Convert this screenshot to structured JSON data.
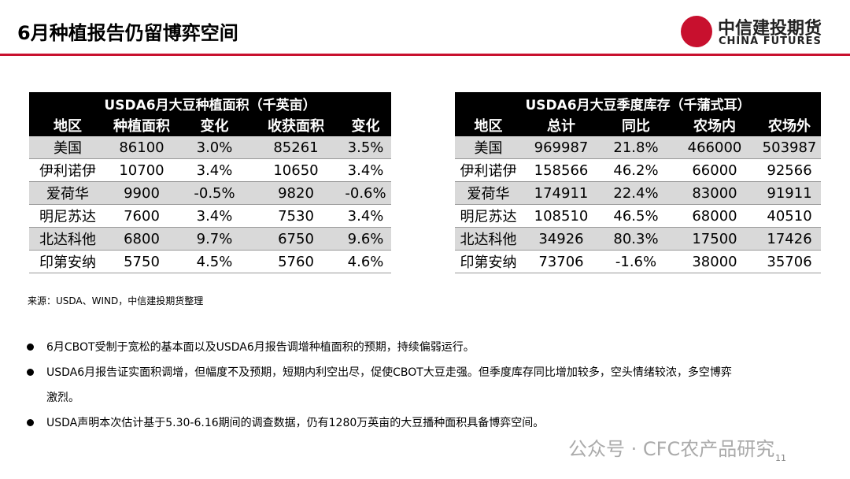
{
  "header": {
    "title": "6月种植报告仍留博弈空间",
    "logo_cn": "中信建投期货",
    "logo_en": "CHINA FUTURES"
  },
  "tables": [
    {
      "title": "USDA6月大豆种植面积（千英亩）",
      "header": [
        "地区",
        "种植面积",
        "变化",
        "收获面积",
        "变化"
      ],
      "rows": [
        [
          "美国",
          "86100",
          "3.0%",
          "85261",
          "3.5%"
        ],
        [
          "伊利诺伊",
          "10700",
          "3.4%",
          "10650",
          "3.4%"
        ],
        [
          "爱荷华",
          "9900",
          "-0.5%",
          "9820",
          "-0.6%"
        ],
        [
          "明尼苏达",
          "7600",
          "3.4%",
          "7530",
          "3.4%"
        ],
        [
          "北达科他",
          "6800",
          "9.7%",
          "6750",
          "9.6%"
        ],
        [
          "印第安纳",
          "5750",
          "4.5%",
          "5760",
          "4.6%"
        ]
      ]
    },
    {
      "title": "USDA6月大豆季度库存（千蒲式耳）",
      "header": [
        "地区",
        "总计",
        "同比",
        "农场内",
        "农场外"
      ],
      "rows": [
        [
          "美国",
          "969987",
          "21.8%",
          "466000",
          "503987"
        ],
        [
          "伊利诺伊",
          "158566",
          "46.2%",
          "66000",
          "92566"
        ],
        [
          "爱荷华",
          "174911",
          "22.4%",
          "83000",
          "91911"
        ],
        [
          "明尼苏达",
          "108510",
          "46.5%",
          "68000",
          "40510"
        ],
        [
          "北达科他",
          "34926",
          "80.3%",
          "17500",
          "17426"
        ],
        [
          "印第安纳",
          "73706",
          "-1.6%",
          "38000",
          "35706"
        ]
      ]
    }
  ],
  "source": "来源：USDA、WIND，中信建投期货整理",
  "bullets": [
    "6月CBOT受制于宽松的基本面以及USDA6月报告调增种植面积的预期，持续偏弱运行。",
    "USDA6月报告证实面积调增，但幅度不及预期，短期内利空出尽，促使CBOT大豆走强。但季度库存同比增加较多，空头情绪较浓，多空博弈激烈。",
    "USDA声明本次估计基于5.30-6.16期间的调查数据，仍有1280万英亩的大豆播种面积具备博弈空间。"
  ],
  "watermark": "公众号 · CFC农产品研究",
  "page_number": "11"
}
